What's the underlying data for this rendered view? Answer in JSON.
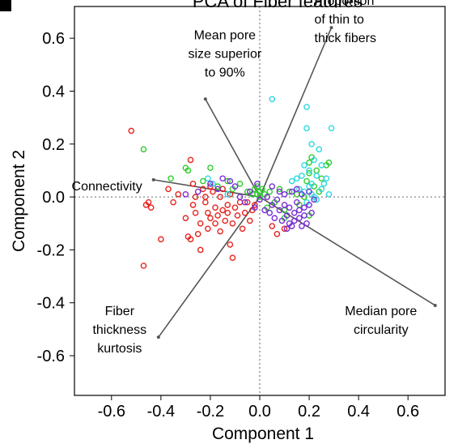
{
  "chart_data": {
    "type": "scatter",
    "title": "PCA of Fiber features",
    "xlabel": "Component 1",
    "ylabel": "Component 2",
    "xlim": [
      -0.75,
      0.75
    ],
    "ylim": [
      -0.75,
      0.72
    ],
    "xticks": [
      -0.6,
      -0.4,
      -0.2,
      0.0,
      0.2,
      0.4,
      0.6
    ],
    "xtick_labels": [
      "-0.6",
      "-0.4",
      "-0.2",
      "0.0",
      "0.2",
      "0.4",
      "0.6"
    ],
    "yticks": [
      0.6,
      0.4,
      0.2,
      0.0,
      -0.2,
      -0.4,
      -0.6
    ],
    "ytick_labels": [
      "0.6",
      "0.4",
      "0.2",
      "0.0",
      "-0.2",
      "-0.4",
      "-0.6"
    ],
    "grid": false,
    "reference_lines": {
      "x": 0,
      "y": 0,
      "style": "dotted"
    },
    "colors": {
      "red": "#e8241f",
      "green": "#2ecc2e",
      "cyan": "#2fd8e0",
      "purple": "#7a2ed8",
      "loading": "#555555"
    },
    "loadings": [
      {
        "label_lines": [
          "Proportion",
          "of thin to",
          "thick fibers"
        ],
        "x": 0.29,
        "y": 0.64,
        "anchor": "start"
      },
      {
        "label_lines": [
          "Mean pore",
          "size superior",
          "to 90%"
        ],
        "x": -0.22,
        "y": 0.37,
        "anchor": "middle"
      },
      {
        "label_lines": [
          "Connectivity"
        ],
        "x": -0.43,
        "y": 0.065,
        "anchor": "end"
      },
      {
        "label_lines": [
          "Fiber",
          "thickness",
          "kurtosis"
        ],
        "x": -0.41,
        "y": -0.53,
        "anchor": "middle"
      },
      {
        "label_lines": [
          "Median pore",
          "circularity"
        ],
        "x": 0.71,
        "y": -0.41,
        "anchor": "middle"
      }
    ],
    "series": [
      {
        "color": "red",
        "points": [
          [
            -0.52,
            0.25
          ],
          [
            -0.47,
            -0.26
          ],
          [
            -0.46,
            -0.03
          ],
          [
            -0.45,
            -0.02
          ],
          [
            -0.44,
            -0.04
          ],
          [
            -0.4,
            -0.16
          ],
          [
            -0.37,
            0.03
          ],
          [
            -0.35,
            -0.02
          ],
          [
            -0.33,
            0.01
          ],
          [
            -0.3,
            -0.08
          ],
          [
            -0.29,
            -0.15
          ],
          [
            -0.28,
            -0.16
          ],
          [
            -0.28,
            0.14
          ],
          [
            -0.27,
            0.05
          ],
          [
            -0.27,
            -0.03
          ],
          [
            -0.26,
            -0.06
          ],
          [
            -0.26,
            0.0
          ],
          [
            -0.25,
            -0.14
          ],
          [
            -0.24,
            -0.2
          ],
          [
            -0.24,
            -0.1
          ],
          [
            -0.23,
            0.03
          ],
          [
            -0.22,
            -0.02
          ],
          [
            -0.22,
            0.0
          ],
          [
            -0.21,
            -0.06
          ],
          [
            -0.21,
            -0.12
          ],
          [
            -0.2,
            -0.08
          ],
          [
            -0.2,
            0.04
          ],
          [
            -0.19,
            0.02
          ],
          [
            -0.18,
            -0.04
          ],
          [
            -0.18,
            -0.1
          ],
          [
            -0.17,
            -0.07
          ],
          [
            -0.16,
            0.0
          ],
          [
            -0.16,
            -0.13
          ],
          [
            -0.15,
            -0.05
          ],
          [
            -0.15,
            0.03
          ],
          [
            -0.14,
            -0.09
          ],
          [
            -0.13,
            -0.03
          ],
          [
            -0.13,
            -0.06
          ],
          [
            -0.12,
            0.01
          ],
          [
            -0.12,
            -0.18
          ],
          [
            -0.11,
            -0.23
          ],
          [
            -0.11,
            -0.1
          ],
          [
            -0.1,
            -0.04
          ],
          [
            -0.09,
            -0.07
          ],
          [
            -0.08,
            -0.02
          ],
          [
            -0.07,
            -0.12
          ],
          [
            -0.06,
            -0.06
          ],
          [
            -0.05,
            -0.02
          ],
          [
            -0.04,
            -0.09
          ],
          [
            -0.03,
            -0.05
          ],
          [
            -0.02,
            -0.03
          ],
          [
            0.05,
            -0.11
          ],
          [
            0.07,
            -0.14
          ],
          [
            0.1,
            -0.12
          ]
        ]
      },
      {
        "color": "green",
        "points": [
          [
            -0.47,
            0.18
          ],
          [
            -0.36,
            0.07
          ],
          [
            -0.3,
            0.11
          ],
          [
            -0.29,
            0.1
          ],
          [
            -0.23,
            0.06
          ],
          [
            -0.2,
            0.11
          ],
          [
            -0.17,
            0.04
          ],
          [
            -0.13,
            0.06
          ],
          [
            -0.11,
            0.03
          ],
          [
            -0.08,
            0.05
          ],
          [
            -0.05,
            0.02
          ],
          [
            -0.03,
            0.01
          ],
          [
            -0.02,
            0.03
          ],
          [
            -0.01,
            0.04
          ],
          [
            -0.01,
            0.01
          ],
          [
            0.0,
            0.02
          ],
          [
            0.0,
            0.0
          ],
          [
            0.01,
            0.03
          ],
          [
            0.02,
            0.01
          ],
          [
            0.03,
            -0.04
          ],
          [
            0.04,
            0.02
          ],
          [
            0.06,
            -0.02
          ],
          [
            0.08,
            0.03
          ],
          [
            0.1,
            -0.05
          ],
          [
            0.12,
            0.02
          ],
          [
            0.15,
            0.01
          ],
          [
            0.18,
            0.0
          ],
          [
            0.19,
            0.06
          ],
          [
            0.2,
            0.13
          ],
          [
            0.2,
            0.09
          ],
          [
            0.21,
            0.15
          ],
          [
            0.22,
            0.04
          ],
          [
            0.23,
            0.1
          ],
          [
            0.24,
            0.02
          ],
          [
            0.25,
            0.07
          ],
          [
            0.27,
            0.12
          ],
          [
            0.28,
            0.13
          ],
          [
            0.2,
            -0.07
          ],
          [
            0.16,
            -0.03
          ],
          [
            0.1,
            -0.08
          ]
        ]
      },
      {
        "color": "cyan",
        "points": [
          [
            -0.21,
            0.07
          ],
          [
            -0.19,
            0.05
          ],
          [
            -0.13,
            0.01
          ],
          [
            0.05,
            0.37
          ],
          [
            0.13,
            0.06
          ],
          [
            0.15,
            0.07
          ],
          [
            0.16,
            0.03
          ],
          [
            0.17,
            0.08
          ],
          [
            0.18,
            0.12
          ],
          [
            0.18,
            0.02
          ],
          [
            0.19,
            0.34
          ],
          [
            0.19,
            0.26
          ],
          [
            0.2,
            0.1
          ],
          [
            0.2,
            0.04
          ],
          [
            0.21,
            0.2
          ],
          [
            0.21,
            0.05
          ],
          [
            0.22,
            0.14
          ],
          [
            0.22,
            0.0
          ],
          [
            0.23,
            0.08
          ],
          [
            0.24,
            0.18
          ],
          [
            0.25,
            0.03
          ],
          [
            0.25,
            0.12
          ],
          [
            0.26,
            0.05
          ],
          [
            0.27,
            0.07
          ],
          [
            0.28,
            0.01
          ],
          [
            0.29,
            0.26
          ],
          [
            0.23,
            -0.01
          ],
          [
            0.21,
            0.01
          ],
          [
            0.19,
            -0.02
          ]
        ]
      },
      {
        "color": "purple",
        "points": [
          [
            -0.3,
            0.01
          ],
          [
            -0.25,
            0.02
          ],
          [
            -0.2,
            0.05
          ],
          [
            -0.17,
            0.03
          ],
          [
            -0.15,
            0.07
          ],
          [
            -0.12,
            0.06
          ],
          [
            -0.1,
            0.04
          ],
          [
            -0.08,
            0.0
          ],
          [
            -0.06,
            -0.02
          ],
          [
            -0.04,
            0.02
          ],
          [
            -0.02,
            -0.04
          ],
          [
            0.0,
            -0.01
          ],
          [
            0.02,
            -0.05
          ],
          [
            0.03,
            0.0
          ],
          [
            0.04,
            -0.06
          ],
          [
            0.05,
            -0.03
          ],
          [
            0.06,
            -0.08
          ],
          [
            0.07,
            -0.01
          ],
          [
            0.08,
            -0.05
          ],
          [
            0.09,
            -0.09
          ],
          [
            0.1,
            -0.03
          ],
          [
            0.1,
            0.01
          ],
          [
            0.11,
            -0.07
          ],
          [
            0.12,
            -0.1
          ],
          [
            0.12,
            -0.04
          ],
          [
            0.13,
            0.02
          ],
          [
            0.14,
            -0.06
          ],
          [
            0.14,
            -0.09
          ],
          [
            0.15,
            -0.02
          ],
          [
            0.16,
            -0.05
          ],
          [
            0.16,
            -0.08
          ],
          [
            0.17,
            0.01
          ],
          [
            0.18,
            -0.04
          ],
          [
            0.18,
            -0.07
          ],
          [
            0.19,
            -0.1
          ],
          [
            0.2,
            -0.03
          ],
          [
            0.21,
            -0.06
          ],
          [
            0.22,
            -0.01
          ],
          [
            0.2,
            0.02
          ],
          [
            0.15,
            0.03
          ],
          [
            0.08,
            0.02
          ],
          [
            0.05,
            0.04
          ],
          [
            -0.01,
            0.05
          ],
          [
            0.11,
            -0.12
          ],
          [
            0.13,
            -0.11
          ],
          [
            0.17,
            -0.11
          ]
        ]
      }
    ]
  }
}
